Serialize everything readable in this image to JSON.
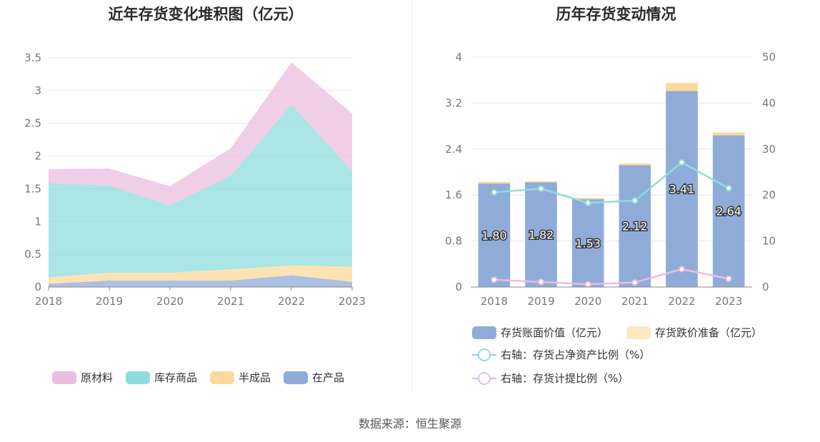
{
  "source_text": "数据来源：恒生聚源",
  "chart_data": [
    {
      "id": "left",
      "type": "area",
      "title": "近年存货变化堆积图（亿元）",
      "stacked": true,
      "categories": [
        "2018",
        "2019",
        "2020",
        "2021",
        "2022",
        "2023"
      ],
      "ylim": [
        0,
        3.5
      ],
      "yticks": [
        "0",
        "0.5",
        "1",
        "1.5",
        "2",
        "2.5",
        "3",
        "3.5"
      ],
      "grid": true,
      "legend_position": "bottom",
      "series": [
        {
          "name": "在产品",
          "color": "#8facd9",
          "values": [
            0.05,
            0.1,
            0.1,
            0.1,
            0.18,
            0.08
          ]
        },
        {
          "name": "半成品",
          "color": "#fcd99a",
          "values": [
            0.1,
            0.12,
            0.12,
            0.17,
            0.15,
            0.23
          ]
        },
        {
          "name": "库存商品",
          "color": "#8fdcdc",
          "values": [
            1.44,
            1.33,
            1.03,
            1.43,
            2.46,
            1.46
          ]
        },
        {
          "name": "原材料",
          "color": "#ebbddf",
          "values": [
            0.21,
            0.26,
            0.29,
            0.42,
            0.64,
            0.88
          ]
        }
      ],
      "legend_order": [
        "原材料",
        "库存商品",
        "半成品",
        "在产品"
      ]
    },
    {
      "id": "right",
      "type": "bar",
      "title": "历年存货变动情况",
      "categories": [
        "2018",
        "2019",
        "2020",
        "2021",
        "2022",
        "2023"
      ],
      "ylim": [
        0,
        4
      ],
      "yticks": [
        "0",
        "0.8",
        "1.6",
        "2.4",
        "3.2",
        "4"
      ],
      "y2lim": [
        0,
        50
      ],
      "y2ticks": [
        "0",
        "10",
        "20",
        "30",
        "40",
        "50"
      ],
      "grid": true,
      "legend_position": "bottom",
      "bars": [
        {
          "name": "存货账面价值（亿元）",
          "color": "#8facd9",
          "values": [
            1.8,
            1.82,
            1.53,
            2.12,
            3.41,
            2.64
          ],
          "labels": [
            "1.80",
            "1.82",
            "1.53",
            "2.12",
            "3.41",
            "2.64"
          ]
        },
        {
          "name": "存货跌价准备（亿元）",
          "color": "#fcd99a",
          "values": [
            0.03,
            0.02,
            0.02,
            0.03,
            0.14,
            0.05
          ]
        }
      ],
      "lines": [
        {
          "name": "右轴：存货占净资产比例（%）",
          "color": "#8fdcdc",
          "values": [
            20.6,
            21.4,
            18.3,
            18.8,
            27.1,
            21.5
          ]
        },
        {
          "name": "右轴：存货计提比例（%）",
          "color": "#ebbddf",
          "values": [
            1.6,
            1.1,
            0.6,
            1.0,
            3.9,
            1.8
          ]
        }
      ]
    }
  ]
}
